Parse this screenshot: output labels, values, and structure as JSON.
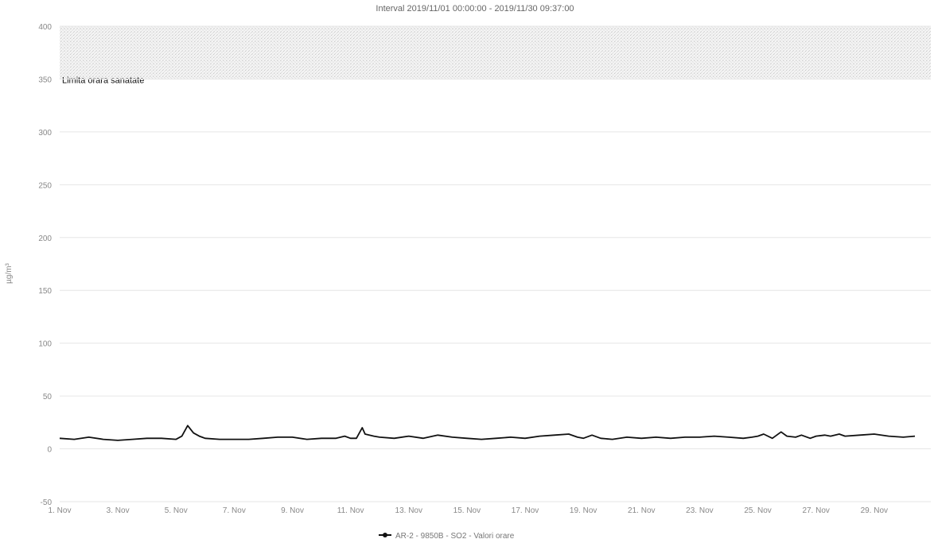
{
  "chart_data": {
    "type": "line",
    "title": "",
    "subtitle": "Interval 2019/11/01 00:00:00 - 2019/11/30 09:37:00",
    "xlabel": "",
    "ylabel": "µg/m³",
    "ylim": [
      -50,
      400
    ],
    "yticks": [
      -50,
      0,
      50,
      100,
      150,
      200,
      250,
      300,
      350,
      400
    ],
    "xlim": [
      1,
      30.4
    ],
    "xticks": [
      {
        "day": 1,
        "label": "1. Nov"
      },
      {
        "day": 3,
        "label": "3. Nov"
      },
      {
        "day": 5,
        "label": "5. Nov"
      },
      {
        "day": 7,
        "label": "7. Nov"
      },
      {
        "day": 9,
        "label": "9. Nov"
      },
      {
        "day": 11,
        "label": "11. Nov"
      },
      {
        "day": 13,
        "label": "13. Nov"
      },
      {
        "day": 15,
        "label": "15. Nov"
      },
      {
        "day": 17,
        "label": "17. Nov"
      },
      {
        "day": 19,
        "label": "19. Nov"
      },
      {
        "day": 21,
        "label": "21. Nov"
      },
      {
        "day": 23,
        "label": "23. Nov"
      },
      {
        "day": 25,
        "label": "25. Nov"
      },
      {
        "day": 27,
        "label": "27. Nov"
      },
      {
        "day": 29,
        "label": "29. Nov"
      }
    ],
    "plot_bands": [
      {
        "from": 350,
        "to": 400,
        "label": "Limita orara sanatate"
      }
    ],
    "grid": true,
    "legend": "bottom-center",
    "series": [
      {
        "name": "AR-2 - 9850B - SO2 - Valori orare",
        "color": "#111111",
        "x": [
          1.0,
          1.5,
          2.0,
          2.5,
          3.0,
          3.5,
          4.0,
          4.5,
          5.0,
          5.2,
          5.4,
          5.6,
          5.8,
          6.0,
          6.5,
          7.0,
          7.5,
          8.0,
          8.5,
          9.0,
          9.5,
          10.0,
          10.5,
          10.8,
          11.0,
          11.2,
          11.4,
          11.5,
          11.8,
          12.0,
          12.5,
          13.0,
          13.5,
          14.0,
          14.5,
          15.0,
          15.5,
          16.0,
          16.5,
          17.0,
          17.5,
          18.0,
          18.5,
          18.8,
          19.0,
          19.3,
          19.6,
          20.0,
          20.5,
          21.0,
          21.5,
          22.0,
          22.5,
          23.0,
          23.5,
          24.0,
          24.5,
          24.8,
          25.0,
          25.2,
          25.5,
          25.8,
          26.0,
          26.3,
          26.5,
          26.8,
          27.0,
          27.3,
          27.5,
          27.8,
          28.0,
          28.5,
          29.0,
          29.5,
          30.0,
          30.4
        ],
        "values": [
          10,
          9,
          11,
          9,
          8,
          9,
          10,
          10,
          9,
          12,
          22,
          15,
          12,
          10,
          9,
          9,
          9,
          10,
          11,
          11,
          9,
          10,
          10,
          12,
          10,
          10,
          20,
          14,
          12,
          11,
          10,
          12,
          10,
          13,
          11,
          10,
          9,
          10,
          11,
          10,
          12,
          13,
          14,
          11,
          10,
          13,
          10,
          9,
          11,
          10,
          11,
          10,
          11,
          11,
          12,
          11,
          10,
          11,
          12,
          14,
          10,
          16,
          12,
          11,
          13,
          10,
          12,
          13,
          12,
          14,
          12,
          13,
          14,
          12,
          11,
          12
        ]
      }
    ]
  }
}
